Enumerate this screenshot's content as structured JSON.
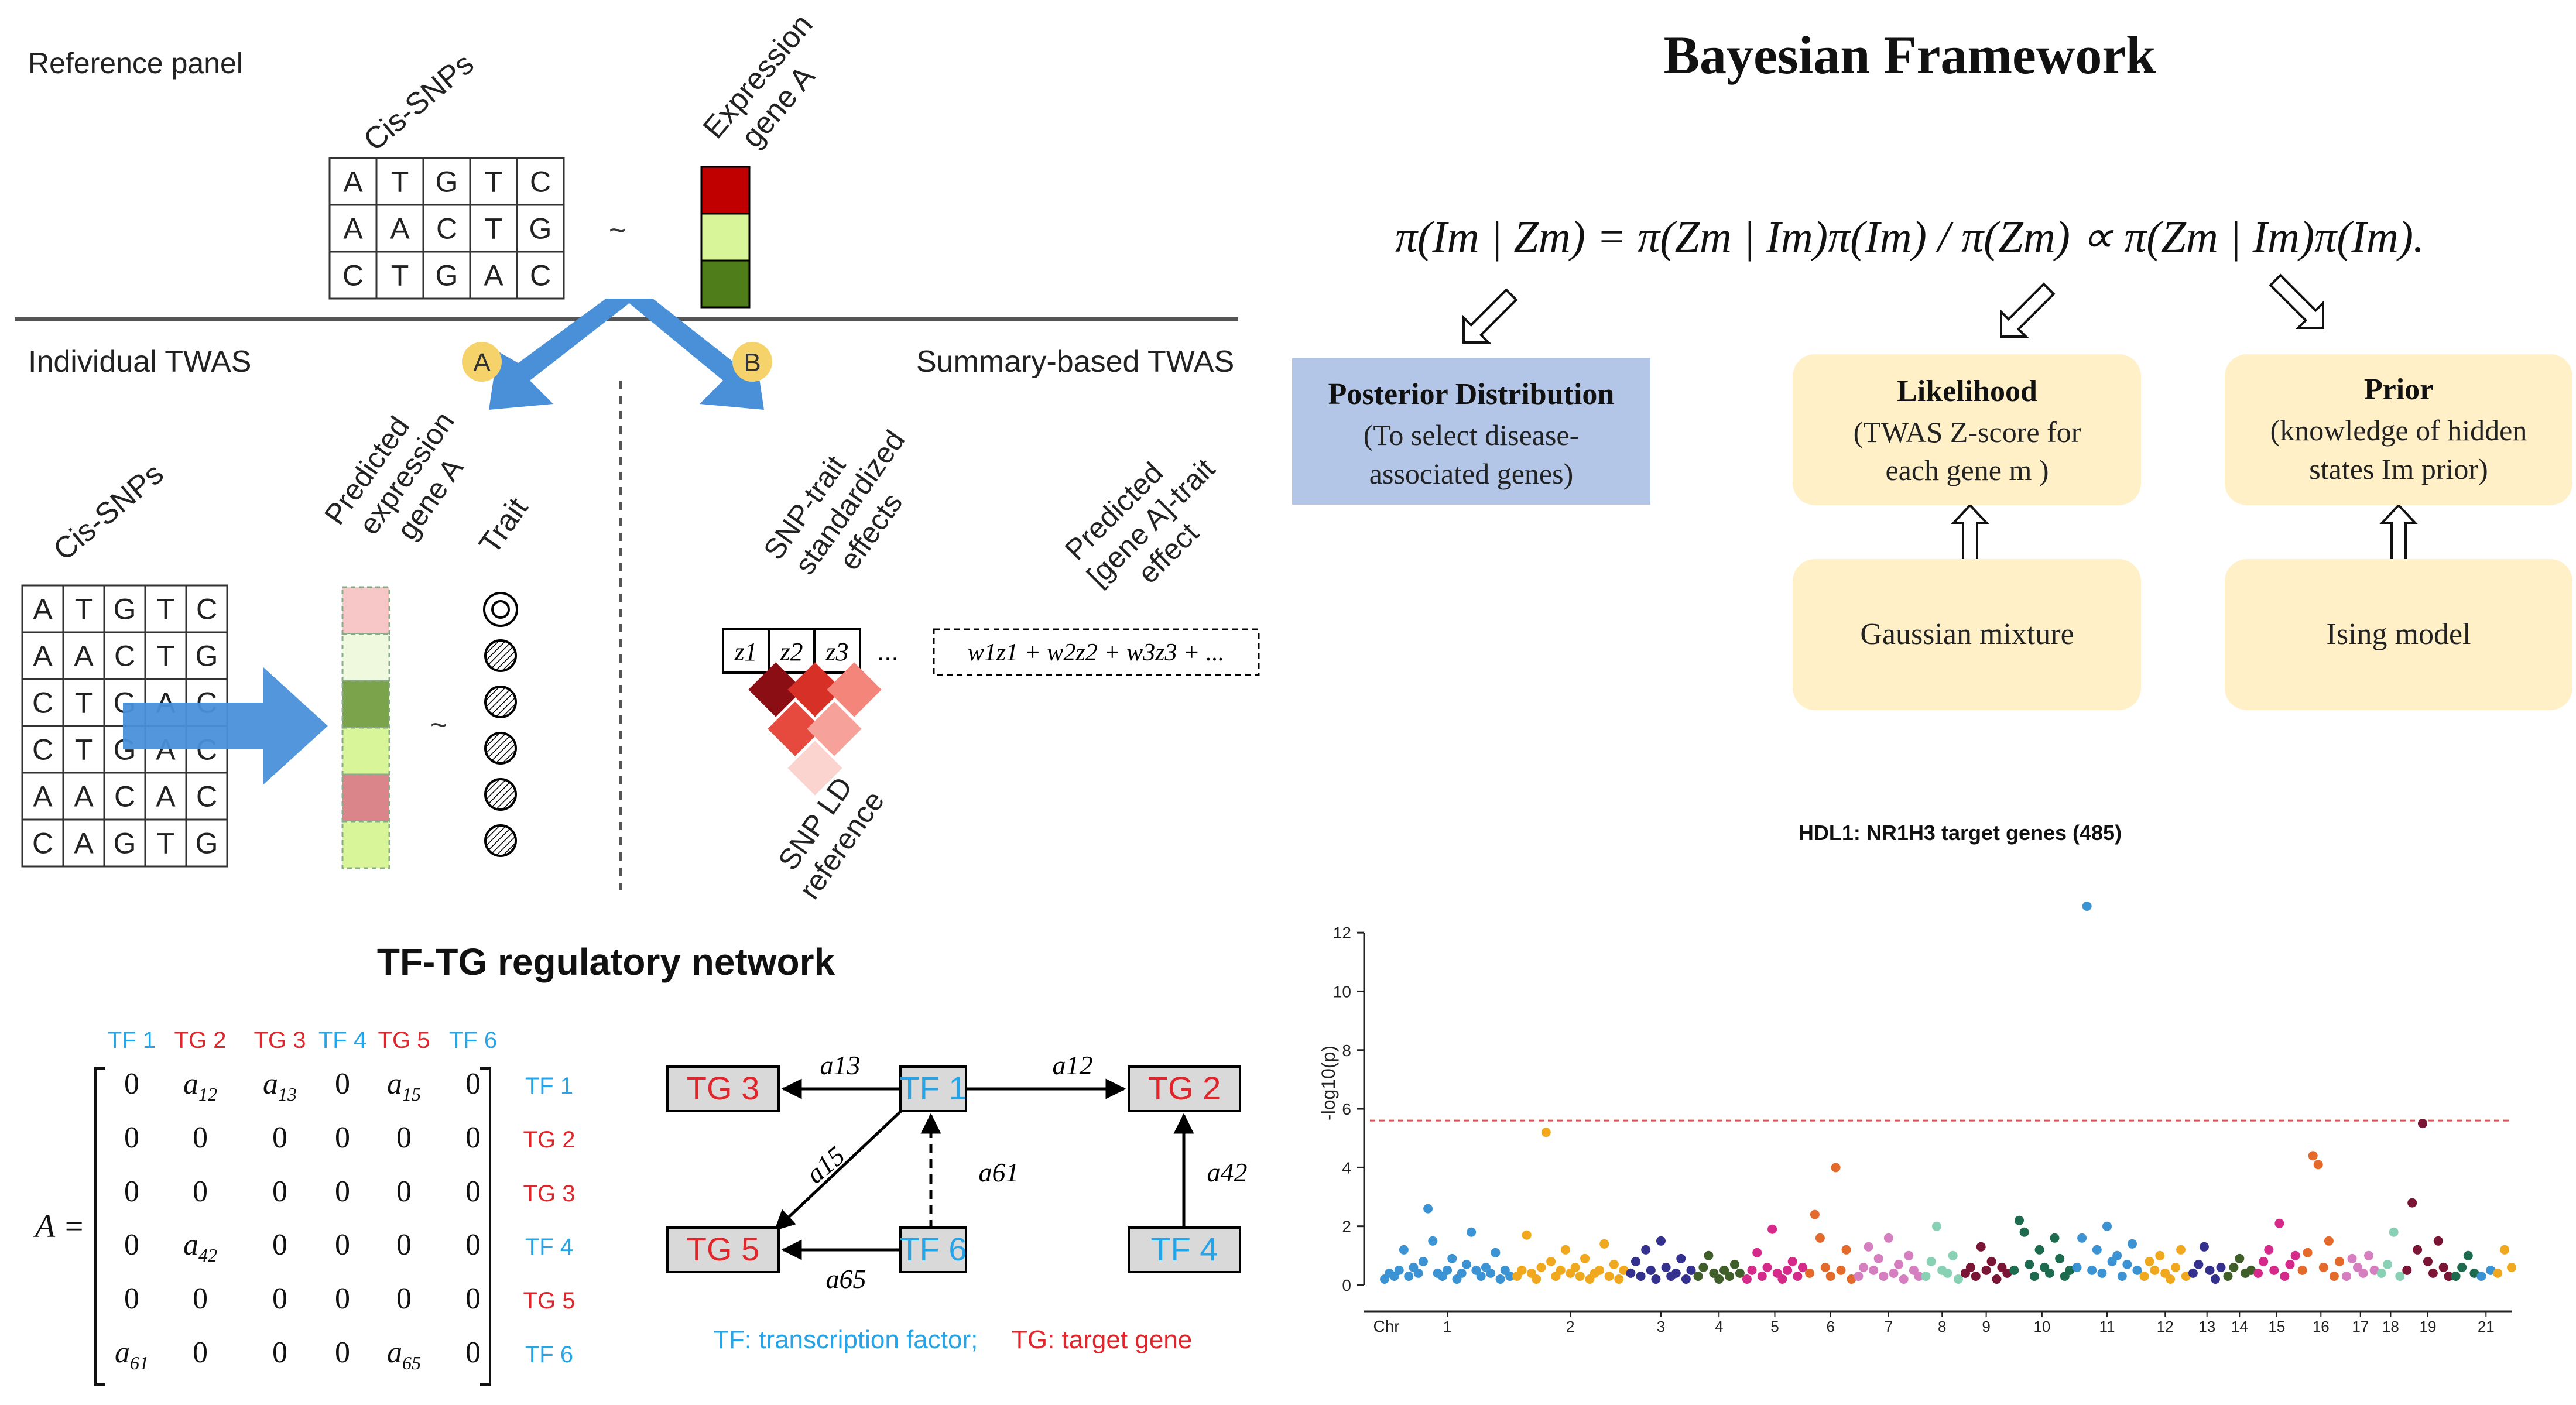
{
  "colors": {
    "red": "#e0262b",
    "blue": "#26a4e8",
    "arrow_blue": "#4a90d9",
    "badge": "#f6d26a",
    "beige": "#fff0c8",
    "posterior_bg": "#b4c6e7",
    "tg_box": "#d9d9d9",
    "dark_red": "#c00000",
    "light_green": "#d9f59a",
    "dark_green": "#4f7d1a"
  },
  "twas": {
    "reference_panel": "Reference panel",
    "cis_snps_top": "Cis-SNPs",
    "expression_gene_a": [
      "Expression",
      "gene A"
    ],
    "tilde": "~",
    "top_grid": [
      [
        "A",
        "T",
        "G",
        "T",
        "C"
      ],
      [
        "A",
        "A",
        "C",
        "T",
        "G"
      ],
      [
        "C",
        "T",
        "G",
        "A",
        "C"
      ]
    ],
    "individual": "Individual TWAS",
    "summary": "Summary-based TWAS",
    "badge_a": "A",
    "badge_b": "B",
    "cis_snps_bottom": "Cis-SNPs",
    "predicted_expression": [
      "Predicted",
      "expression",
      "gene A"
    ],
    "trait": "Trait",
    "bottom_grid": [
      [
        "A",
        "T",
        "G",
        "T",
        "C"
      ],
      [
        "A",
        "A",
        "C",
        "T",
        "G"
      ],
      [
        "C",
        "T",
        "G",
        "A",
        "C"
      ],
      [
        "C",
        "T",
        "G",
        "A",
        "C"
      ],
      [
        "A",
        "A",
        "C",
        "A",
        "C"
      ],
      [
        "C",
        "A",
        "G",
        "T",
        "G"
      ]
    ],
    "snp_trait": [
      "SNP-trait",
      "standardized",
      "effects"
    ],
    "predicted_gene_trait": [
      "Predicted",
      "[gene A]-trait",
      "effect"
    ],
    "z_labels": [
      "z1",
      "z2",
      "z3"
    ],
    "ellipsis": "...",
    "weighted_sum": "w1z1 + w2z2 + w3z3 + ...",
    "snp_ld": [
      "SNP LD",
      "reference"
    ]
  },
  "network": {
    "title": "TF-TG regulatory network",
    "column_labels": [
      "TF 1",
      "TG 2",
      "TG 3",
      "TF 4",
      "TG 5",
      "TF 6"
    ],
    "row_labels": [
      "TF 1",
      "TG 2",
      "TG 3",
      "TF 4",
      "TG 5",
      "TF 6"
    ],
    "matrix_name": "A =",
    "matrix": [
      [
        "0",
        "a12",
        "a13",
        "0",
        "a15",
        "0"
      ],
      [
        "0",
        "0",
        "0",
        "0",
        "0",
        "0"
      ],
      [
        "0",
        "0",
        "0",
        "0",
        "0",
        "0"
      ],
      [
        "0",
        "a42",
        "0",
        "0",
        "0",
        "0"
      ],
      [
        "0",
        "0",
        "0",
        "0",
        "0",
        "0"
      ],
      [
        "a61",
        "0",
        "0",
        "0",
        "a65",
        "0"
      ]
    ],
    "nodes": {
      "tg3": "TG 3",
      "tf1": "TF 1",
      "tg2": "TG 2",
      "tg5": "TG 5",
      "tf6": "TF 6",
      "tf4": "TF 4"
    },
    "edges": {
      "a13": "a13",
      "a12": "a12",
      "a15": "a15",
      "a61": "a61",
      "a42": "a42",
      "a65": "a65"
    },
    "legend_tf": "TF: transcription factor;",
    "legend_tg": "TG: target gene"
  },
  "bayes": {
    "title": "Bayesian Framework",
    "equation": "π(Im | Zm) = π(Zm | Im)π(Im) / π(Zm) ∝ π(Zm | Im)π(Im).",
    "posterior_title": "Posterior Distribution",
    "posterior_desc": [
      "(To select disease-",
      "associated genes)"
    ],
    "likelihood_title": "Likelihood",
    "likelihood_desc": [
      "(TWAS Z-score for",
      "each gene m )"
    ],
    "prior_title": "Prior",
    "prior_desc": [
      "(knowledge of hidden",
      "states Im prior)"
    ],
    "gaussian": "Gaussian mixture",
    "ising": "Ising model"
  },
  "chart_data": {
    "type": "scatter",
    "title": "HDL1: NR1H3 target genes (485)",
    "ylabel": "-log10(p)",
    "xlabel": "Chr",
    "ylim": [
      0,
      13
    ],
    "yticks": [
      0,
      2,
      4,
      6,
      8,
      10,
      12
    ],
    "threshold": 5.6,
    "x_tick_labels": [
      "1",
      "2",
      "3",
      "4",
      "5",
      "6",
      "7",
      "8",
      "9",
      "10",
      "11",
      "12",
      "13",
      "14",
      "15",
      "16",
      "17",
      "18",
      "19",
      "21"
    ],
    "series": [
      {
        "chr": "1",
        "color": "#3b93d4",
        "values": [
          0.2,
          0.4,
          0.3,
          0.5,
          1.2,
          0.3,
          0.6,
          0.4,
          0.8,
          2.6,
          1.5,
          0.4,
          0.3,
          0.5,
          0.9,
          0.2,
          0.4,
          0.7,
          1.8,
          0.5,
          0.3,
          0.6,
          0.4,
          1.1,
          0.2,
          0.5,
          0.3
        ]
      },
      {
        "chr": "2",
        "color": "#f0a81e",
        "values": [
          0.3,
          0.5,
          1.7,
          0.4,
          0.2,
          0.6,
          5.2,
          0.8,
          0.3,
          0.5,
          1.2,
          0.4,
          0.6,
          0.3,
          0.9,
          0.2,
          0.4,
          0.5,
          1.4,
          0.3,
          0.7,
          0.2,
          0.5
        ]
      },
      {
        "chr": "3",
        "color": "#34308e",
        "values": [
          0.4,
          0.8,
          0.3,
          1.2,
          0.5,
          0.2,
          1.5,
          0.6,
          0.3,
          0.4,
          0.9,
          0.2,
          0.5
        ]
      },
      {
        "chr": "4",
        "color": "#3f5e2a",
        "values": [
          0.3,
          0.6,
          1.0,
          0.4,
          0.2,
          0.5,
          0.3,
          0.7,
          0.4
        ]
      },
      {
        "chr": "5",
        "color": "#d62a8b",
        "values": [
          0.2,
          0.5,
          1.1,
          0.3,
          0.6,
          1.9,
          0.4,
          0.2,
          0.5,
          0.8,
          0.3,
          0.6
        ]
      },
      {
        "chr": "6",
        "color": "#e46a2c",
        "values": [
          0.4,
          2.4,
          1.6,
          0.6,
          0.3,
          4.0,
          0.5,
          1.2,
          0.2
        ]
      },
      {
        "chr": "7",
        "color": "#d57fc0",
        "values": [
          0.3,
          0.6,
          1.3,
          0.5,
          0.9,
          0.3,
          1.6,
          0.4,
          0.7,
          0.2,
          1.0,
          0.5,
          0.3
        ]
      },
      {
        "chr": "8",
        "color": "#89d1b4",
        "values": [
          0.3,
          0.8,
          2.0,
          0.5,
          0.4,
          1.0,
          0.2
        ]
      },
      {
        "chr": "9",
        "color": "#7b1535",
        "values": [
          0.4,
          0.6,
          0.3,
          1.3,
          0.5,
          0.8,
          0.2,
          0.6,
          0.4
        ]
      },
      {
        "chr": "10",
        "color": "#1d6b4f",
        "values": [
          0.5,
          2.2,
          1.8,
          0.7,
          0.3,
          1.2,
          0.6,
          0.4,
          1.6,
          0.9,
          0.3,
          0.5
        ]
      },
      {
        "chr": "11",
        "color": "#3b93d4",
        "values": [
          0.6,
          1.6,
          12.9,
          0.5,
          1.2,
          0.4,
          2.0,
          0.8,
          1.0,
          0.3,
          0.7,
          1.4,
          0.5
        ]
      },
      {
        "chr": "12",
        "color": "#f0a81e",
        "values": [
          0.3,
          0.8,
          0.5,
          1.0,
          0.4,
          0.2,
          0.6,
          1.2,
          0.3
        ]
      },
      {
        "chr": "13",
        "color": "#34308e",
        "values": [
          0.4,
          0.7,
          1.3,
          0.5,
          0.2,
          0.6
        ]
      },
      {
        "chr": "14",
        "color": "#3f5e2a",
        "values": [
          0.3,
          0.6,
          0.9,
          0.4,
          0.5
        ]
      },
      {
        "chr": "15",
        "color": "#d62a8b",
        "values": [
          0.4,
          0.8,
          1.2,
          0.5,
          2.1,
          0.3,
          0.7,
          1.0
        ]
      },
      {
        "chr": "16",
        "color": "#e46a2c",
        "values": [
          0.5,
          1.1,
          4.4,
          4.1,
          0.6,
          1.5,
          0.3,
          0.8
        ]
      },
      {
        "chr": "17",
        "color": "#d57fc0",
        "values": [
          0.3,
          0.9,
          0.6,
          0.4,
          1.0,
          0.5
        ]
      },
      {
        "chr": "18",
        "color": "#89d1b4",
        "values": [
          0.4,
          0.7,
          1.8,
          0.3
        ]
      },
      {
        "chr": "19",
        "color": "#7b1535",
        "values": [
          0.5,
          2.8,
          1.2,
          5.5,
          0.8,
          0.4,
          1.5,
          0.6,
          0.3
        ]
      },
      {
        "chr": "20",
        "color": "#1d6b4f",
        "values": [
          0.3,
          0.6,
          1.0,
          0.4
        ]
      },
      {
        "chr": "21",
        "color": "#3b93d4",
        "values": [
          0.3,
          0.5
        ]
      },
      {
        "chr": "22",
        "color": "#f0a81e",
        "values": [
          0.4,
          1.2,
          0.6
        ]
      }
    ]
  }
}
